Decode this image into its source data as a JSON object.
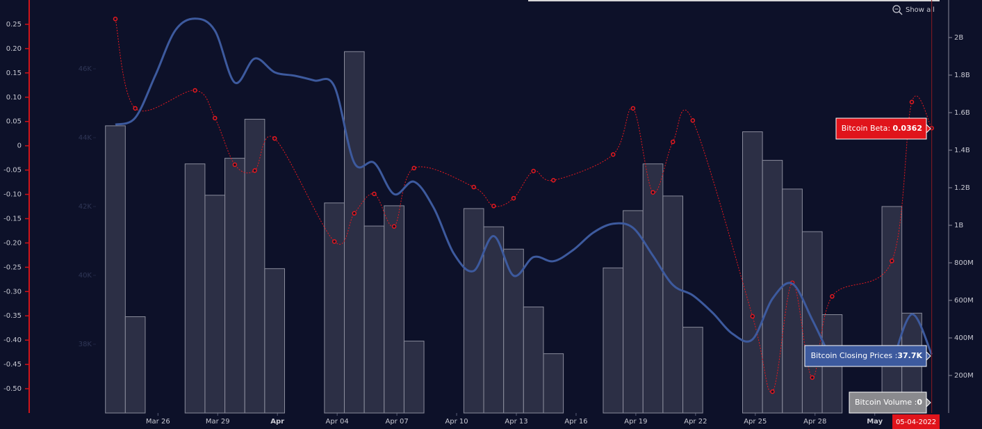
{
  "chart_data": {
    "type": "combo",
    "series": [
      {
        "name": "Bitcoin Volume",
        "type": "bar",
        "axis": "y2",
        "color": "#2c2f45",
        "x": [
          "Mar 24",
          "Mar 25",
          "Mar 28",
          "Mar 29",
          "Mar 30",
          "Mar 31",
          "Apr 01",
          "Apr 04",
          "Apr 05",
          "Apr 06",
          "Apr 07",
          "Apr 08",
          "Apr 11",
          "Apr 12",
          "Apr 13",
          "Apr 14",
          "Apr 15",
          "Apr 18",
          "Apr 19",
          "Apr 20",
          "Apr 21",
          "Apr 22",
          "Apr 25",
          "Apr 26",
          "Apr 27",
          "Apr 28",
          "Apr 29",
          "May 02",
          "May 03",
          "May 04"
        ],
        "values": [
          1530000000,
          513000000,
          1327000000,
          1160000000,
          1357000000,
          1565000000,
          769000000,
          1119000000,
          1925000000,
          996000000,
          1104000000,
          383000000,
          1089000000,
          992000000,
          873000000,
          565000000,
          316000000,
          773000000,
          1078000000,
          1327000000,
          1156000000,
          457000000,
          1498000000,
          1346000000,
          1193000000,
          966000000,
          524000000,
          1100000000,
          532000000,
          0
        ]
      },
      {
        "name": "Bitcoin Beta",
        "type": "line",
        "axis": "y",
        "color": "#e8191f",
        "x": [
          "Mar 24",
          "Mar 25",
          "Mar 28",
          "Mar 29",
          "Mar 30",
          "Mar 31",
          "Apr 01",
          "Apr 04",
          "Apr 05",
          "Apr 06",
          "Apr 07",
          "Apr 08",
          "Apr 11",
          "Apr 12",
          "Apr 13",
          "Apr 14",
          "Apr 15",
          "Apr 18",
          "Apr 19",
          "Apr 20",
          "Apr 21",
          "Apr 22",
          "Apr 25",
          "Apr 26",
          "Apr 27",
          "Apr 28",
          "Apr 29",
          "May 02",
          "May 03",
          "May 04"
        ],
        "values": [
          0.261,
          0.077,
          0.114,
          0.057,
          -0.039,
          -0.051,
          0.015,
          -0.197,
          -0.139,
          -0.099,
          -0.166,
          -0.046,
          -0.085,
          -0.124,
          -0.108,
          -0.052,
          -0.071,
          -0.018,
          0.077,
          -0.096,
          0.008,
          0.052,
          -0.351,
          -0.506,
          -0.282,
          -0.477,
          -0.31,
          -0.237,
          0.09,
          0.0362
        ]
      },
      {
        "name": "Bitcoin Closing Prices",
        "type": "line",
        "axis": "y3",
        "color": "#3d5a9e",
        "x": [
          "Mar 24",
          "Mar 25",
          "Mar 26",
          "Mar 27",
          "Mar 28",
          "Mar 29",
          "Mar 30",
          "Mar 31",
          "Apr 01",
          "Apr 02",
          "Apr 03",
          "Apr 04",
          "Apr 05",
          "Apr 06",
          "Apr 07",
          "Apr 08",
          "Apr 09",
          "Apr 10",
          "Apr 11",
          "Apr 12",
          "Apr 13",
          "Apr 14",
          "Apr 15",
          "Apr 16",
          "Apr 17",
          "Apr 18",
          "Apr 19",
          "Apr 20",
          "Apr 21",
          "Apr 22",
          "Apr 23",
          "Apr 24",
          "Apr 25",
          "Apr 26",
          "Apr 27",
          "Apr 28",
          "Apr 29",
          "Apr 30",
          "May 01",
          "May 02",
          "May 03",
          "May 04"
        ],
        "values": [
          44380,
          44580,
          45800,
          47110,
          47460,
          47110,
          45600,
          46300,
          45900,
          45800,
          45660,
          45490,
          43270,
          43270,
          42360,
          42720,
          41950,
          40630,
          40130,
          41140,
          39990,
          40530,
          40410,
          40740,
          41240,
          41500,
          41380,
          40570,
          39720,
          39420,
          38910,
          38300,
          38140,
          39320,
          39760,
          38710,
          37500,
          null,
          null,
          37400,
          38870,
          37700
        ],
        "value_labels": [
          null,
          null,
          null,
          null,
          null,
          null,
          null,
          null,
          null,
          null,
          null,
          null,
          null,
          null,
          null,
          null,
          null,
          null,
          null,
          null,
          null,
          null,
          null,
          null,
          null,
          null,
          null,
          null,
          null,
          null,
          null,
          null,
          null,
          null,
          null,
          null,
          null,
          null,
          null,
          null,
          null,
          "37.7K"
        ]
      }
    ],
    "ylim": [
      -0.55,
      0.3
    ],
    "yticks": [
      0.25,
      {
        "value": 0.2,
        "label": "0.20"
      },
      0.15,
      {
        "value": 0.1,
        "label": "0.10"
      },
      0.05,
      0,
      -0.05,
      {
        "value": -0.1,
        "label": "-0.10"
      },
      -0.15,
      {
        "value": -0.2,
        "label": "-0.20"
      },
      -0.25,
      {
        "value": -0.3,
        "label": "-0.30"
      },
      -0.35,
      {
        "value": -0.4,
        "label": "-0.40"
      },
      -0.45,
      {
        "value": -0.5,
        "label": "-0.50"
      }
    ],
    "y2lim": [
      0,
      2200000000
    ],
    "y2ticks": [
      {
        "value": 200000000,
        "label": "200M"
      },
      {
        "value": 400000000,
        "label": "400M"
      },
      {
        "value": 600000000,
        "label": "600M"
      },
      {
        "value": 800000000,
        "label": "800M"
      },
      {
        "value": 1000000000,
        "label": "1B"
      },
      {
        "value": 1200000000,
        "label": "1.2B"
      },
      {
        "value": 1400000000,
        "label": "1.4B"
      },
      {
        "value": 1600000000,
        "label": "1.6B"
      },
      {
        "value": 1800000000,
        "label": "1.8B"
      },
      {
        "value": 2000000000,
        "label": "2B"
      }
    ],
    "y3lim": [
      36000,
      48000
    ],
    "y3ticks": [
      {
        "value": 38000,
        "label": "38K"
      },
      {
        "value": 40000,
        "label": "40K"
      },
      {
        "value": 42000,
        "label": "42K"
      },
      {
        "value": 44000,
        "label": "44K"
      },
      {
        "value": 46000,
        "label": "46K"
      }
    ],
    "xticks": [
      "Mar 26",
      "Mar 29",
      {
        "value": "Apr 01",
        "label": "Apr"
      },
      "Apr 04",
      "Apr 07",
      "Apr 10",
      "Apr 13",
      "Apr 16",
      "Apr 19",
      "Apr 22",
      "Apr 25",
      "Apr 28",
      {
        "value": "May 01",
        "label": "May"
      }
    ],
    "crosshair": {
      "x": "May 04",
      "label": "05-04-2022"
    },
    "tooltip_separators": [
      ": ",
      " :",
      " :"
    ],
    "zoom_button": "Show all",
    "grid": false
  }
}
